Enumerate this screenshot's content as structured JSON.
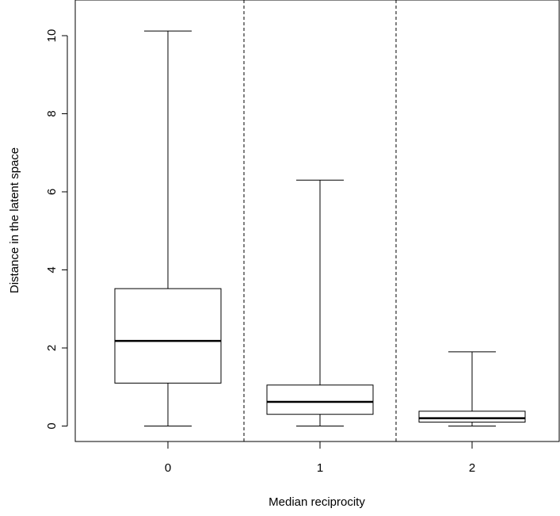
{
  "chart_data": {
    "type": "box",
    "xlabel": "Median reciprocity",
    "ylabel": "Distance in the latent space",
    "categories": [
      "0",
      "1",
      "2"
    ],
    "yticks": [
      0,
      2,
      4,
      6,
      8,
      10
    ],
    "ylim": [
      -0.15,
      10.9
    ],
    "boxes": [
      {
        "category": "0",
        "whisker_low": 0,
        "q1": 1.1,
        "median": 2.18,
        "q3": 3.52,
        "whisker_high": 10.12
      },
      {
        "category": "1",
        "whisker_low": 0,
        "q1": 0.3,
        "median": 0.62,
        "q3": 1.05,
        "whisker_high": 6.3
      },
      {
        "category": "2",
        "whisker_low": 0,
        "q1": 0.1,
        "median": 0.2,
        "q3": 0.38,
        "whisker_high": 1.9
      }
    ],
    "separators_between_categories": true,
    "separator_style": "dashed",
    "grid": false,
    "legend": "none",
    "colors": {
      "line": "#000000",
      "box_fill": "#ffffff",
      "background": "#ffffff"
    }
  }
}
